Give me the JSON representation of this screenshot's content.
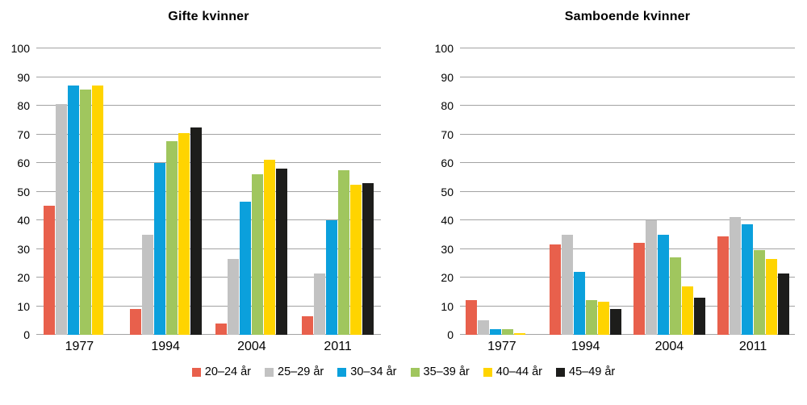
{
  "page": {
    "background": "#ffffff",
    "text_color": "#000000",
    "gridline_color": "#a3a3a3"
  },
  "legend": {
    "position": "bottom-center",
    "items": [
      {
        "label": "20–24 år",
        "color": "#e8604c"
      },
      {
        "label": "25–29 år",
        "color": "#c2c2c2"
      },
      {
        "label": "30–34 år",
        "color": "#0ba0dc"
      },
      {
        "label": "35–39 år",
        "color": "#a0c65e"
      },
      {
        "label": "40–44 år",
        "color": "#ffd400"
      },
      {
        "label": "45–49 år",
        "color": "#1d1d1b"
      }
    ]
  },
  "chart_data": [
    {
      "type": "bar",
      "title": "Gifte kvinner",
      "categories": [
        "1977",
        "1994",
        "2004",
        "2011"
      ],
      "series": [
        {
          "name": "20–24 år",
          "color": "#e8604c",
          "values": [
            45,
            9,
            4,
            6.5
          ]
        },
        {
          "name": "25–29 år",
          "color": "#c2c2c2",
          "values": [
            80.5,
            35,
            26.5,
            21.5
          ]
        },
        {
          "name": "30–34 år",
          "color": "#0ba0dc",
          "values": [
            87,
            60,
            46.5,
            40
          ]
        },
        {
          "name": "35–39 år",
          "color": "#a0c65e",
          "values": [
            85.5,
            67.5,
            56,
            57.5
          ]
        },
        {
          "name": "40–44 år",
          "color": "#ffd400",
          "values": [
            87,
            70.5,
            61,
            52.5
          ]
        },
        {
          "name": "45–49 år",
          "color": "#1d1d1b",
          "values": [
            null,
            72.5,
            58,
            53
          ]
        }
      ],
      "xlabel": "",
      "ylabel": "",
      "ylim": [
        0,
        100
      ],
      "yticks": [
        0,
        10,
        20,
        30,
        40,
        50,
        60,
        70,
        80,
        90,
        100
      ],
      "grid": true,
      "legend_position": "shared-bottom"
    },
    {
      "type": "bar",
      "title": "Samboende kvinner",
      "categories": [
        "1977",
        "1994",
        "2004",
        "2011"
      ],
      "series": [
        {
          "name": "20–24 år",
          "color": "#e8604c",
          "values": [
            12,
            31.5,
            32,
            34.5
          ]
        },
        {
          "name": "25–29 år",
          "color": "#c2c2c2",
          "values": [
            5,
            35,
            40,
            41
          ]
        },
        {
          "name": "30–34 år",
          "color": "#0ba0dc",
          "values": [
            2,
            22,
            35,
            38.5
          ]
        },
        {
          "name": "35–39 år",
          "color": "#a0c65e",
          "values": [
            2,
            12,
            27,
            29.5
          ]
        },
        {
          "name": "40–44 år",
          "color": "#ffd400",
          "values": [
            0.7,
            11.5,
            17,
            26.5
          ]
        },
        {
          "name": "45–49 år",
          "color": "#1d1d1b",
          "values": [
            null,
            9,
            13,
            21.5
          ]
        }
      ],
      "xlabel": "",
      "ylabel": "",
      "ylim": [
        0,
        100
      ],
      "yticks": [
        0,
        10,
        20,
        30,
        40,
        50,
        60,
        70,
        80,
        90,
        100
      ],
      "grid": true,
      "legend_position": "shared-bottom"
    }
  ]
}
